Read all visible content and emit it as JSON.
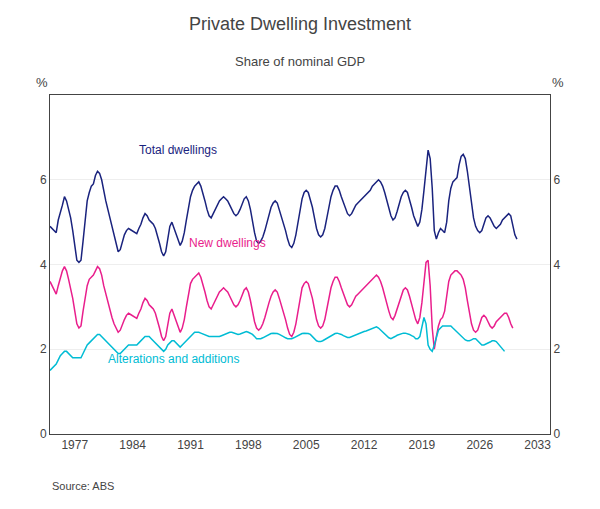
{
  "chart_data": {
    "type": "line",
    "title": "Private Dwelling Investment",
    "subtitle": "Share of nominal GDP",
    "source": "Source: ABS",
    "ylabel": "%",
    "y2label": "%",
    "xlim": [
      1974.0,
      2034.5
    ],
    "xticks": [
      1977,
      1984,
      1991,
      1998,
      2005,
      2012,
      2019,
      2026,
      2033
    ],
    "ylim": [
      0,
      8
    ],
    "yticks": [
      0,
      2,
      4,
      6
    ],
    "y2lim": [
      0,
      8
    ],
    "y2ticks": [
      0,
      2,
      4,
      6
    ],
    "grid": "y",
    "x": [
      1974,
      1974.25,
      1974.5,
      1974.75,
      1975,
      1975.25,
      1975.5,
      1975.75,
      1976,
      1976.25,
      1976.5,
      1976.75,
      1977,
      1977.25,
      1977.5,
      1977.75,
      1978,
      1978.25,
      1978.5,
      1978.75,
      1979,
      1979.25,
      1979.5,
      1979.75,
      1980,
      1980.25,
      1980.5,
      1980.75,
      1981,
      1981.25,
      1981.5,
      1981.75,
      1982,
      1982.25,
      1982.5,
      1982.75,
      1983,
      1983.25,
      1983.5,
      1983.75,
      1984,
      1984.25,
      1984.5,
      1984.75,
      1985,
      1985.25,
      1985.5,
      1985.75,
      1986,
      1986.25,
      1986.5,
      1986.75,
      1987,
      1987.25,
      1987.5,
      1987.75,
      1988,
      1988.25,
      1988.5,
      1988.75,
      1989,
      1989.25,
      1989.5,
      1989.75,
      1990,
      1990.25,
      1990.5,
      1990.75,
      1991,
      1991.25,
      1991.5,
      1991.75,
      1992,
      1992.25,
      1992.5,
      1992.75,
      1993,
      1993.25,
      1993.5,
      1993.75,
      1994,
      1994.25,
      1994.5,
      1994.75,
      1995,
      1995.25,
      1995.5,
      1995.75,
      1996,
      1996.25,
      1996.5,
      1996.75,
      1997,
      1997.25,
      1997.5,
      1997.75,
      1998,
      1998.25,
      1998.5,
      1998.75,
      1999,
      1999.25,
      1999.5,
      1999.75,
      2000,
      2000.25,
      2000.5,
      2000.75,
      2001,
      2001.25,
      2001.5,
      2001.75,
      2002,
      2002.25,
      2002.5,
      2002.75,
      2003,
      2003.25,
      2003.5,
      2003.75,
      2004,
      2004.25,
      2004.5,
      2004.75,
      2005,
      2005.25,
      2005.5,
      2005.75,
      2006,
      2006.25,
      2006.5,
      2006.75,
      2007,
      2007.25,
      2007.5,
      2007.75,
      2008,
      2008.25,
      2008.5,
      2008.75,
      2009,
      2009.25,
      2009.5,
      2009.75,
      2010,
      2010.25,
      2010.5,
      2010.75,
      2011,
      2011.25,
      2011.5,
      2011.75,
      2012,
      2012.25,
      2012.5,
      2012.75,
      2013,
      2013.25,
      2013.5,
      2013.75,
      2014,
      2014.25,
      2014.5,
      2014.75,
      2015,
      2015.25,
      2015.5,
      2015.75,
      2016,
      2016.25,
      2016.5,
      2016.75,
      2017,
      2017.25,
      2017.5,
      2017.75,
      2018,
      2018.25,
      2018.5,
      2018.75,
      2019,
      2019.25,
      2019.5,
      2019.75,
      2020,
      2020.25,
      2020.5,
      2020.75,
      2021,
      2021.25,
      2021.5,
      2021.75,
      2022,
      2022.25,
      2022.5,
      2022.75,
      2023,
      2023.25,
      2023.5,
      2023.75,
      2024,
      2024.25,
      2024.5,
      2024.75,
      2025,
      2025.25,
      2025.5,
      2025.75,
      2026,
      2026.25,
      2026.5,
      2026.75,
      2027,
      2027.25,
      2027.5,
      2027.75,
      2028,
      2028.25,
      2028.5,
      2028.75,
      2029,
      2029.25,
      2029.5,
      2029.75,
      2030,
      2030.25,
      2030.5
    ],
    "series": [
      {
        "color": "#1a237e",
        "values": [
          4.9,
          4.85,
          4.8,
          4.75,
          5.05,
          5.2,
          5.4,
          5.6,
          5.5,
          5.3,
          5.1,
          4.8,
          4.4,
          4.1,
          4.05,
          4.1,
          4.55,
          5.0,
          5.5,
          5.7,
          5.85,
          5.9,
          6.1,
          6.2,
          6.15,
          6.0,
          5.7,
          5.5,
          5.3,
          5.1,
          4.9,
          4.7,
          4.5,
          4.3,
          4.35,
          4.55,
          4.7,
          4.8,
          4.85,
          4.82,
          4.79,
          4.76,
          4.73,
          4.85,
          4.95,
          5.1,
          5.2,
          5.15,
          5.05,
          5.0,
          4.95,
          4.85,
          4.7,
          4.5,
          4.3,
          4.2,
          4.3,
          4.6,
          4.9,
          5.0,
          4.85,
          4.7,
          4.55,
          4.45,
          4.55,
          4.75,
          5.05,
          5.35,
          5.6,
          5.75,
          5.85,
          5.9,
          5.95,
          5.85,
          5.7,
          5.5,
          5.3,
          5.15,
          5.1,
          5.2,
          5.3,
          5.4,
          5.5,
          5.55,
          5.6,
          5.55,
          5.5,
          5.4,
          5.3,
          5.2,
          5.15,
          5.2,
          5.3,
          5.45,
          5.55,
          5.6,
          5.5,
          5.3,
          5.0,
          4.75,
          4.55,
          4.5,
          4.55,
          4.65,
          4.8,
          5.0,
          5.2,
          5.35,
          5.45,
          5.5,
          5.45,
          5.3,
          5.15,
          5.0,
          4.8,
          4.6,
          4.45,
          4.4,
          4.5,
          4.7,
          5.0,
          5.3,
          5.55,
          5.7,
          5.75,
          5.7,
          5.55,
          5.35,
          5.1,
          4.85,
          4.7,
          4.65,
          4.7,
          4.85,
          5.1,
          5.35,
          5.6,
          5.75,
          5.85,
          5.85,
          5.75,
          5.6,
          5.45,
          5.3,
          5.2,
          5.15,
          5.2,
          5.3,
          5.4,
          5.45,
          5.5,
          5.55,
          5.6,
          5.65,
          5.7,
          5.75,
          5.85,
          5.9,
          5.95,
          6.0,
          5.95,
          5.85,
          5.7,
          5.5,
          5.3,
          5.15,
          5.05,
          5.1,
          5.25,
          5.45,
          5.6,
          5.7,
          5.75,
          5.7,
          5.55,
          5.35,
          5.15,
          5.0,
          4.9,
          5.0,
          5.3,
          5.75,
          6.3,
          6.7,
          6.5,
          5.8,
          4.8,
          4.6,
          4.75,
          4.85,
          4.8,
          4.75,
          5.0,
          5.5,
          5.8,
          5.95,
          6.0,
          6.05,
          6.35,
          6.55,
          6.6,
          6.5,
          6.2,
          5.8,
          5.4,
          5.1,
          4.9,
          4.8,
          4.75,
          4.8,
          4.95,
          5.1,
          5.15,
          5.1,
          5.0,
          4.9,
          4.85,
          4.9,
          4.95,
          5.05,
          5.1,
          5.15,
          5.2,
          5.15,
          4.95,
          4.7,
          4.6
        ]
      },
      {
        "color": "#e91e8c",
        "values": [
          3.6,
          3.5,
          3.4,
          3.3,
          3.5,
          3.7,
          3.85,
          3.95,
          3.85,
          3.65,
          3.45,
          3.2,
          2.9,
          2.6,
          2.5,
          2.55,
          2.9,
          3.2,
          3.5,
          3.65,
          3.7,
          3.75,
          3.85,
          3.95,
          3.9,
          3.75,
          3.5,
          3.3,
          3.1,
          2.9,
          2.75,
          2.6,
          2.5,
          2.4,
          2.45,
          2.6,
          2.7,
          2.8,
          2.85,
          2.82,
          2.79,
          2.76,
          2.73,
          2.85,
          2.95,
          3.1,
          3.2,
          3.15,
          3.05,
          3.0,
          2.95,
          2.85,
          2.7,
          2.5,
          2.3,
          2.2,
          2.3,
          2.6,
          2.85,
          2.95,
          2.8,
          2.65,
          2.5,
          2.4,
          2.5,
          2.7,
          3.0,
          3.3,
          3.55,
          3.65,
          3.7,
          3.75,
          3.8,
          3.7,
          3.55,
          3.35,
          3.15,
          3.0,
          2.95,
          3.05,
          3.15,
          3.25,
          3.35,
          3.4,
          3.45,
          3.4,
          3.35,
          3.25,
          3.15,
          3.05,
          3.0,
          3.05,
          3.15,
          3.3,
          3.4,
          3.45,
          3.35,
          3.15,
          2.9,
          2.65,
          2.5,
          2.45,
          2.5,
          2.6,
          2.75,
          2.95,
          3.1,
          3.25,
          3.35,
          3.4,
          3.35,
          3.2,
          3.05,
          2.9,
          2.7,
          2.5,
          2.35,
          2.3,
          2.4,
          2.6,
          2.9,
          3.2,
          3.45,
          3.55,
          3.6,
          3.55,
          3.4,
          3.2,
          2.95,
          2.7,
          2.55,
          2.5,
          2.55,
          2.7,
          2.95,
          3.2,
          3.45,
          3.6,
          3.7,
          3.7,
          3.6,
          3.45,
          3.3,
          3.15,
          3.05,
          3.0,
          3.05,
          3.15,
          3.25,
          3.3,
          3.35,
          3.4,
          3.45,
          3.5,
          3.55,
          3.6,
          3.65,
          3.7,
          3.75,
          3.7,
          3.6,
          3.45,
          3.25,
          3.05,
          2.9,
          2.75,
          2.7,
          2.8,
          2.95,
          3.15,
          3.3,
          3.4,
          3.45,
          3.4,
          3.25,
          3.05,
          2.85,
          2.7,
          2.6,
          2.75,
          3.1,
          3.6,
          4.05,
          4.1,
          3.5,
          2.5,
          2.0,
          2.3,
          2.55,
          2.7,
          2.75,
          2.9,
          3.3,
          3.6,
          3.75,
          3.8,
          3.85,
          3.85,
          3.8,
          3.75,
          3.65,
          3.45,
          3.15,
          2.85,
          2.6,
          2.45,
          2.4,
          2.45,
          2.6,
          2.75,
          2.8,
          2.75,
          2.65,
          2.55,
          2.5,
          2.55,
          2.65,
          2.7,
          2.75,
          2.8,
          2.85,
          2.85,
          2.75,
          2.6,
          2.5,
          null,
          null
        ]
      },
      {
        "color": "#00bcd4",
        "values": [
          1.5,
          1.55,
          1.6,
          1.65,
          1.75,
          1.85,
          1.9,
          1.95,
          1.95,
          1.9,
          1.85,
          1.8,
          1.8,
          1.8,
          1.8,
          1.8,
          1.9,
          2.0,
          2.1,
          2.15,
          2.2,
          2.25,
          2.3,
          2.35,
          2.35,
          2.3,
          2.25,
          2.2,
          2.15,
          2.1,
          2.05,
          2.0,
          1.95,
          1.9,
          1.9,
          1.95,
          2.0,
          2.05,
          2.1,
          2.1,
          2.1,
          2.1,
          2.1,
          2.15,
          2.2,
          2.25,
          2.3,
          2.3,
          2.3,
          2.25,
          2.2,
          2.15,
          2.1,
          2.05,
          2.0,
          1.95,
          2.0,
          2.1,
          2.15,
          2.2,
          2.2,
          2.15,
          2.1,
          2.05,
          2.1,
          2.15,
          2.2,
          2.25,
          2.3,
          2.35,
          2.4,
          2.4,
          2.4,
          2.38,
          2.36,
          2.34,
          2.32,
          2.3,
          2.3,
          2.3,
          2.3,
          2.3,
          2.3,
          2.32,
          2.34,
          2.35,
          2.38,
          2.4,
          2.4,
          2.38,
          2.36,
          2.35,
          2.36,
          2.38,
          2.4,
          2.42,
          2.4,
          2.38,
          2.35,
          2.3,
          2.25,
          2.25,
          2.25,
          2.27,
          2.3,
          2.33,
          2.35,
          2.37,
          2.38,
          2.38,
          2.37,
          2.35,
          2.33,
          2.3,
          2.27,
          2.25,
          2.25,
          2.25,
          2.27,
          2.3,
          2.33,
          2.35,
          2.37,
          2.38,
          2.38,
          2.37,
          2.35,
          2.3,
          2.25,
          2.2,
          2.18,
          2.18,
          2.2,
          2.23,
          2.27,
          2.3,
          2.33,
          2.35,
          2.37,
          2.38,
          2.37,
          2.35,
          2.32,
          2.3,
          2.28,
          2.28,
          2.3,
          2.32,
          2.35,
          2.37,
          2.38,
          2.4,
          2.42,
          2.43,
          2.45,
          2.47,
          2.5,
          2.52,
          2.53,
          2.5,
          2.45,
          2.4,
          2.35,
          2.3,
          2.27,
          2.25,
          2.27,
          2.3,
          2.33,
          2.35,
          2.37,
          2.38,
          2.38,
          2.37,
          2.35,
          2.32,
          2.3,
          2.25,
          2.25,
          2.3,
          2.5,
          2.75,
          2.6,
          2.1,
          2.0,
          1.95,
          2.1,
          2.3,
          2.45,
          2.5,
          2.55,
          2.55,
          2.55,
          2.55,
          2.55,
          2.5,
          2.45,
          2.4,
          2.35,
          2.3,
          2.25,
          2.22,
          2.2,
          2.2,
          2.22,
          2.25,
          2.25,
          2.2,
          2.15,
          2.1,
          2.1,
          2.12,
          2.15,
          2.17,
          2.2,
          2.2,
          2.18,
          2.12,
          2.05,
          2.0,
          1.95,
          null,
          null,
          null,
          null,
          null,
          null
        ]
      }
    ],
    "annotations": [
      {
        "text": "Total dwellings",
        "x": 1989.5,
        "y": 6.5,
        "color": "#1a237e"
      },
      {
        "text": "New dwellings",
        "x": 1995.5,
        "y": 4.3,
        "color": "#e91e8c"
      },
      {
        "text": "Alterations and additions",
        "x": 1989.0,
        "y": 1.55,
        "color": "#00bcd4"
      }
    ]
  }
}
